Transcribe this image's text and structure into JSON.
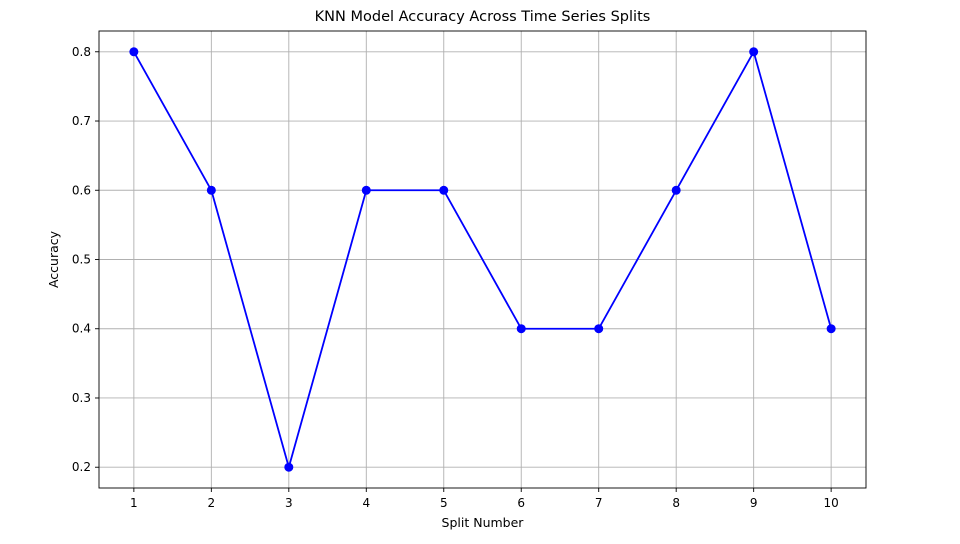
{
  "chart_data": {
    "type": "line",
    "title": "KNN Model Accuracy Across Time Series Splits",
    "xlabel": "Split Number",
    "ylabel": "Accuracy",
    "x": [
      1,
      2,
      3,
      4,
      5,
      6,
      7,
      8,
      9,
      10
    ],
    "series": [
      {
        "values": [
          0.8,
          0.6,
          0.2,
          0.6,
          0.6,
          0.4,
          0.4,
          0.6,
          0.8,
          0.4
        ],
        "color": "#0000ff",
        "marker": "circle"
      }
    ],
    "xlim": [
      0.55,
      10.45
    ],
    "ylim": [
      0.17,
      0.83
    ],
    "xticks": [
      "1",
      "2",
      "3",
      "4",
      "5",
      "6",
      "7",
      "8",
      "9",
      "10"
    ],
    "yticks": [
      "0.2",
      "0.3",
      "0.4",
      "0.5",
      "0.6",
      "0.7",
      "0.8"
    ],
    "grid": true,
    "legend": "none"
  }
}
